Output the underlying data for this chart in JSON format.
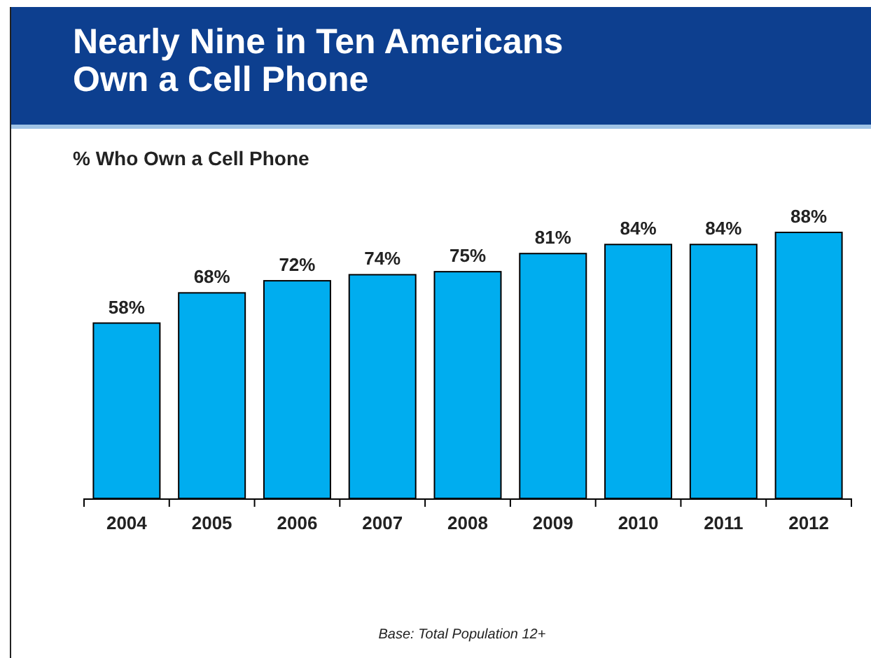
{
  "chart_data": {
    "type": "bar",
    "title": "Nearly Nine in Ten Americans\nOwn a Cell Phone",
    "subtitle": "% Who Own a Cell Phone",
    "categories": [
      "2004",
      "2005",
      "2006",
      "2007",
      "2008",
      "2009",
      "2010",
      "2011",
      "2012"
    ],
    "values": [
      58,
      68,
      72,
      74,
      75,
      81,
      84,
      84,
      88
    ],
    "value_labels": [
      "58%",
      "68%",
      "72%",
      "74%",
      "75%",
      "81%",
      "84%",
      "84%",
      "88%"
    ],
    "color": "#00adef",
    "annotations": [
      "Base:  Total Population  12+"
    ]
  }
}
